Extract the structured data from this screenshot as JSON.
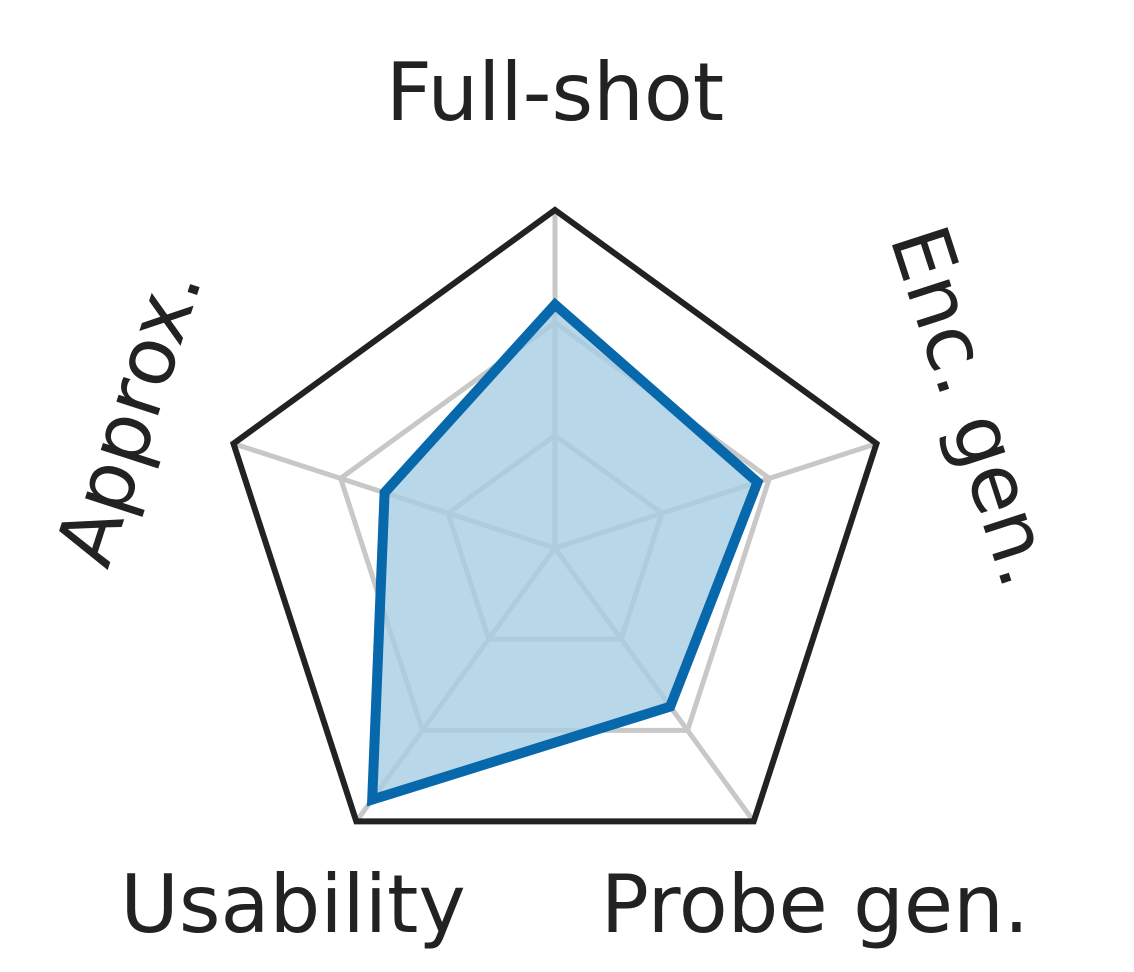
{
  "chart_data": {
    "type": "radar",
    "axes": [
      "Full-shot",
      "Enc. gen.",
      "Probe gen.",
      "Usability",
      "Approx."
    ],
    "max": 1.0,
    "grid_levels": [
      0.333,
      0.667,
      1.0
    ],
    "series": [
      {
        "values": [
          0.72,
          0.63,
          0.58,
          0.92,
          0.53
        ]
      }
    ],
    "colors": {
      "series_line": "#0868ac",
      "series_fill": "#a6cee3",
      "outer_frame": "#222222",
      "grid": "#c8c8c8"
    }
  }
}
